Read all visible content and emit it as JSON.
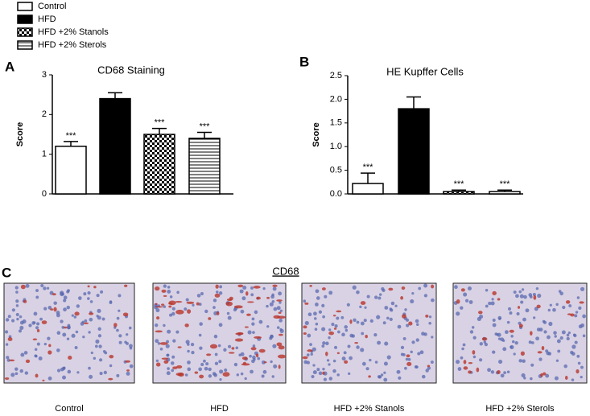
{
  "legend": {
    "entries": [
      "Control",
      "HFD",
      "HFD +2% Stanols",
      "HFD +2% Sterols"
    ]
  },
  "chart_data": [
    {
      "type": "bar",
      "panel": "A",
      "title": "CD68 Staining",
      "ylabel": "Score",
      "values": [
        1.2,
        2.4,
        1.5,
        1.4
      ],
      "errors": [
        0.12,
        0.15,
        0.15,
        0.15
      ],
      "annotations": [
        "***",
        null,
        "***",
        "***"
      ],
      "ylim": [
        0,
        3
      ],
      "yticks": [
        0,
        1,
        2,
        3
      ]
    },
    {
      "type": "bar",
      "panel": "B",
      "title": "HE  Kupffer Cells",
      "ylabel": "Score",
      "values": [
        0.22,
        1.8,
        0.05,
        0.05
      ],
      "errors": [
        0.22,
        0.25,
        0.03,
        0.03
      ],
      "annotations": [
        "***",
        null,
        "***",
        "***"
      ],
      "ylim": [
        0,
        2.5
      ],
      "yticks": [
        {
          "value": 0,
          "label": "0.0"
        },
        0.5,
        {
          "value": 1,
          "label": "1.0"
        },
        1.5,
        {
          "value": 2,
          "label": "2.0"
        },
        2.5
      ]
    }
  ],
  "micrographs": {
    "panel": "C",
    "title": "CD68",
    "captions": [
      "Control",
      "HFD",
      "HFD +2% Stanols",
      "HFD +2% Sterols"
    ]
  }
}
